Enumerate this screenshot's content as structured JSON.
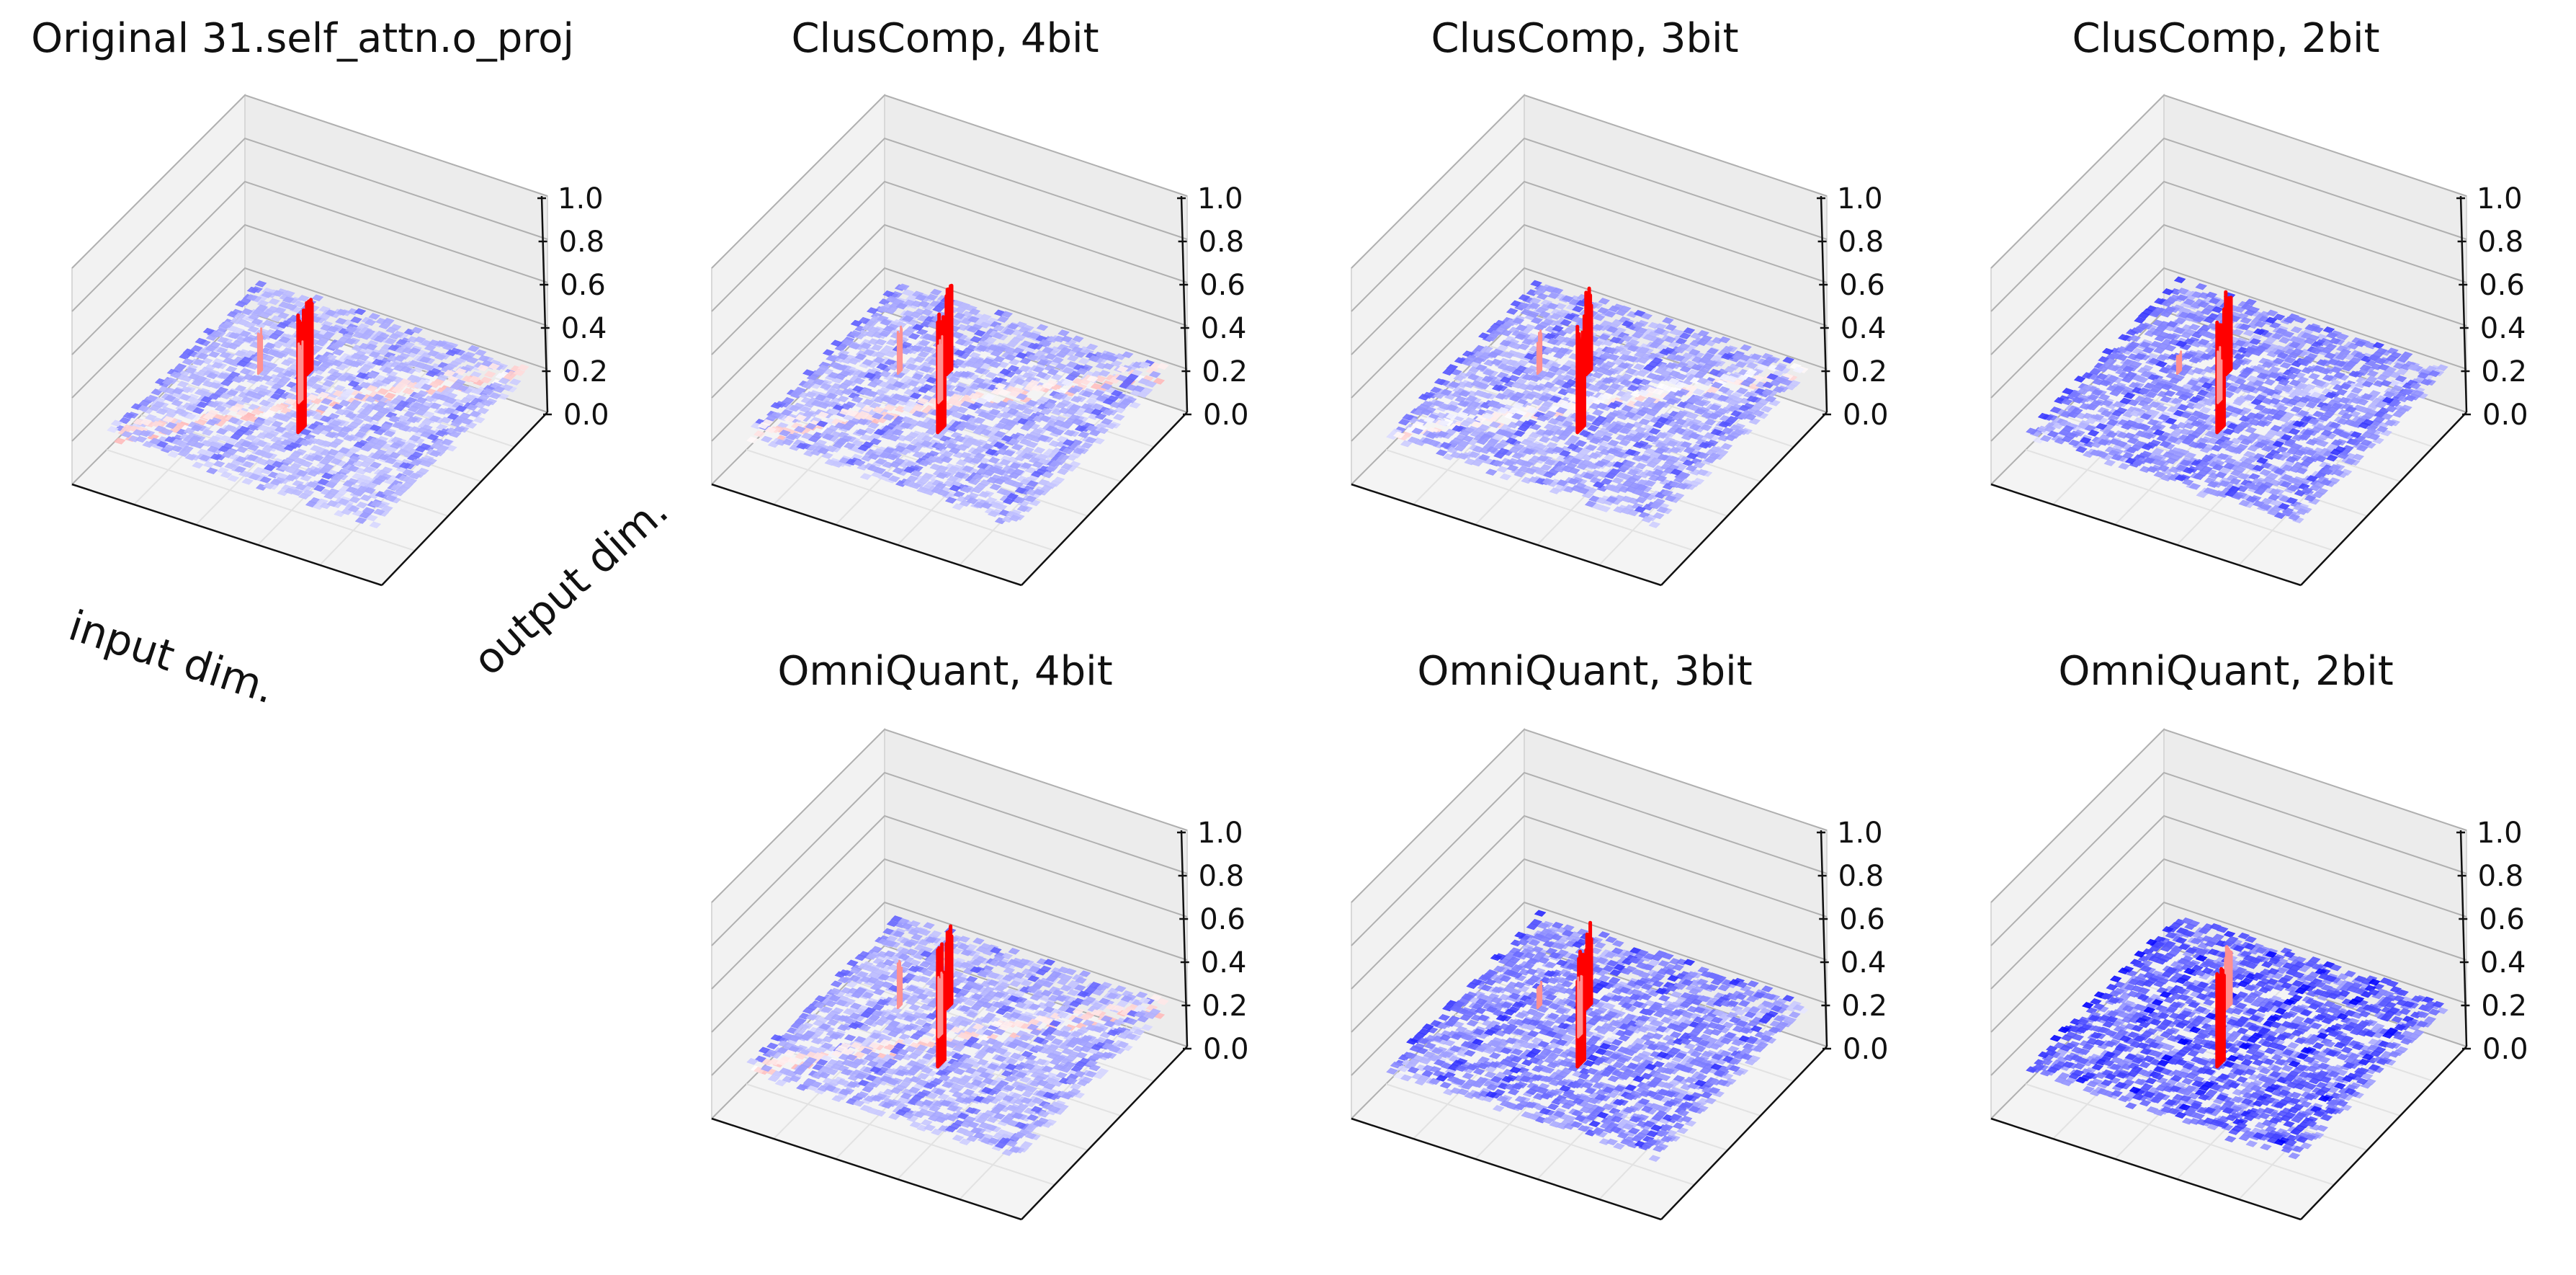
{
  "chart_data": {
    "type": "surface3d",
    "colormap": "bwr",
    "colors": {
      "low": "#0000ff",
      "mid": "#ffffff",
      "high": "#ff0000",
      "pane_back": "#f2f2f2",
      "pane_floor": "#f4f4f4",
      "grid": "#b0b0b0",
      "axis": "#111111"
    },
    "xlabel": "input dim.",
    "ylabel": "output dim.",
    "zlim": [
      0.0,
      1.0
    ],
    "zticks": [
      "0.0",
      "0.2",
      "0.4",
      "0.6",
      "0.8",
      "1.0"
    ],
    "panels": [
      {
        "title": "Original 31.self_attn.o_proj",
        "method": "Original",
        "bits": null,
        "noise": 0.18,
        "spikes": [
          0.35,
          0.55,
          0.28,
          0.22
        ],
        "diag": 0.12
      },
      {
        "title": "ClusComp, 4bit",
        "method": "ClusComp",
        "bits": 4,
        "noise": 0.2,
        "spikes": [
          0.4,
          0.55,
          0.3,
          0.22
        ],
        "diag": 0.12
      },
      {
        "title": "ClusComp, 3bit",
        "method": "ClusComp",
        "bits": 3,
        "noise": 0.22,
        "spikes": [
          0.42,
          0.55,
          0.32,
          0.2
        ],
        "diag": 0.1
      },
      {
        "title": "ClusComp, 2bit",
        "method": "ClusComp",
        "bits": 2,
        "noise": 0.28,
        "spikes": [
          0.4,
          0.55,
          0.25,
          0.1
        ],
        "diag": 0.05
      },
      {
        "title": "OmniQuant, 4bit",
        "method": "OmniQuant",
        "bits": 4,
        "noise": 0.2,
        "spikes": [
          0.4,
          0.55,
          0.3,
          0.22
        ],
        "diag": 0.12
      },
      {
        "title": "OmniQuant, 3bit",
        "method": "OmniQuant",
        "bits": 3,
        "noise": 0.3,
        "spikes": [
          0.38,
          0.52,
          0.28,
          0.12
        ],
        "diag": 0.05
      },
      {
        "title": "OmniQuant, 2bit",
        "method": "OmniQuant",
        "bits": 2,
        "noise": 0.38,
        "spikes": [
          0.3,
          0.45,
          0.0,
          0.0
        ],
        "diag": 0.0
      }
    ]
  }
}
